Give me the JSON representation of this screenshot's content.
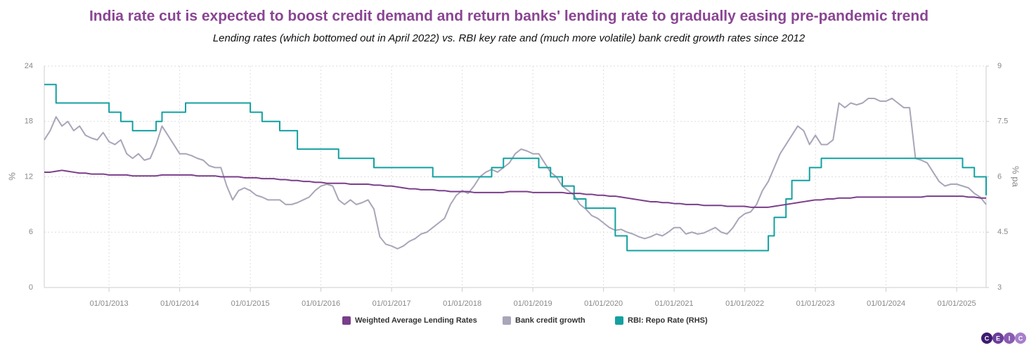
{
  "chart_data": {
    "type": "line",
    "title": "India rate cut is expected to boost credit demand and return banks' lending rate to gradually easing pre-pandemic trend",
    "subtitle": "Lending rates (which bottomed out in April 2022) vs. RBI key rate and (much more volatile) bank credit growth rates since 2012",
    "ylabel": "%",
    "y2label": "% pa",
    "logo": [
      "C",
      "E",
      "I",
      "C"
    ],
    "grid": true,
    "legend": "bottom",
    "xlim": [
      "2012-02",
      "2025-06"
    ],
    "xticks": [
      {
        "value": "2013-01",
        "label": "01/01/2013"
      },
      {
        "value": "2014-01",
        "label": "01/01/2014"
      },
      {
        "value": "2015-01",
        "label": "01/01/2015"
      },
      {
        "value": "2016-01",
        "label": "01/01/2016"
      },
      {
        "value": "2017-01",
        "label": "01/01/2017"
      },
      {
        "value": "2018-01",
        "label": "01/01/2018"
      },
      {
        "value": "2019-01",
        "label": "01/01/2019"
      },
      {
        "value": "2020-01",
        "label": "01/01/2020"
      },
      {
        "value": "2021-01",
        "label": "01/01/2021"
      },
      {
        "value": "2022-01",
        "label": "01/01/2022"
      },
      {
        "value": "2023-01",
        "label": "01/01/2023"
      },
      {
        "value": "2024-01",
        "label": "01/01/2024"
      },
      {
        "value": "2025-01",
        "label": "01/01/2025"
      }
    ],
    "ylim": [
      0,
      24
    ],
    "yticks": [
      0,
      6,
      12,
      18,
      24
    ],
    "y2lim": [
      3,
      9
    ],
    "y2ticks": [
      3,
      4.5,
      6,
      7.5,
      9
    ],
    "x": [
      "2012-02",
      "2012-03",
      "2012-04",
      "2012-05",
      "2012-06",
      "2012-07",
      "2012-08",
      "2012-09",
      "2012-10",
      "2012-11",
      "2012-12",
      "2013-01",
      "2013-02",
      "2013-03",
      "2013-04",
      "2013-05",
      "2013-06",
      "2013-07",
      "2013-08",
      "2013-09",
      "2013-10",
      "2013-11",
      "2013-12",
      "2014-01",
      "2014-02",
      "2014-03",
      "2014-04",
      "2014-05",
      "2014-06",
      "2014-07",
      "2014-08",
      "2014-09",
      "2014-10",
      "2014-11",
      "2014-12",
      "2015-01",
      "2015-02",
      "2015-03",
      "2015-04",
      "2015-05",
      "2015-06",
      "2015-07",
      "2015-08",
      "2015-09",
      "2015-10",
      "2015-11",
      "2015-12",
      "2016-01",
      "2016-02",
      "2016-03",
      "2016-04",
      "2016-05",
      "2016-06",
      "2016-07",
      "2016-08",
      "2016-09",
      "2016-10",
      "2016-11",
      "2016-12",
      "2017-01",
      "2017-02",
      "2017-03",
      "2017-04",
      "2017-05",
      "2017-06",
      "2017-07",
      "2017-08",
      "2017-09",
      "2017-10",
      "2017-11",
      "2017-12",
      "2018-01",
      "2018-02",
      "2018-03",
      "2018-04",
      "2018-05",
      "2018-06",
      "2018-07",
      "2018-08",
      "2018-09",
      "2018-10",
      "2018-11",
      "2018-12",
      "2019-01",
      "2019-02",
      "2019-03",
      "2019-04",
      "2019-05",
      "2019-06",
      "2019-07",
      "2019-08",
      "2019-09",
      "2019-10",
      "2019-11",
      "2019-12",
      "2020-01",
      "2020-02",
      "2020-03",
      "2020-04",
      "2020-05",
      "2020-06",
      "2020-07",
      "2020-08",
      "2020-09",
      "2020-10",
      "2020-11",
      "2020-12",
      "2021-01",
      "2021-02",
      "2021-03",
      "2021-04",
      "2021-05",
      "2021-06",
      "2021-07",
      "2021-08",
      "2021-09",
      "2021-10",
      "2021-11",
      "2021-12",
      "2022-01",
      "2022-02",
      "2022-03",
      "2022-04",
      "2022-05",
      "2022-06",
      "2022-07",
      "2022-08",
      "2022-09",
      "2022-10",
      "2022-11",
      "2022-12",
      "2023-01",
      "2023-02",
      "2023-03",
      "2023-04",
      "2023-05",
      "2023-06",
      "2023-07",
      "2023-08",
      "2023-09",
      "2023-10",
      "2023-11",
      "2023-12",
      "2024-01",
      "2024-02",
      "2024-03",
      "2024-04",
      "2024-05",
      "2024-06",
      "2024-07",
      "2024-08",
      "2024-09",
      "2024-10",
      "2024-11",
      "2024-12",
      "2025-01",
      "2025-02",
      "2025-03",
      "2025-04",
      "2025-05",
      "2025-06"
    ],
    "series": [
      {
        "name": "Weighted Average Lending Rates",
        "color": "#7a3e8a",
        "values": [
          12.5,
          12.5,
          12.6,
          12.7,
          12.6,
          12.5,
          12.4,
          12.4,
          12.3,
          12.3,
          12.3,
          12.2,
          12.2,
          12.2,
          12.2,
          12.1,
          12.1,
          12.1,
          12.1,
          12.1,
          12.2,
          12.2,
          12.2,
          12.2,
          12.2,
          12.2,
          12.1,
          12.1,
          12.1,
          12.1,
          12.0,
          12.0,
          12.0,
          12.0,
          11.9,
          11.9,
          11.9,
          11.8,
          11.8,
          11.8,
          11.7,
          11.7,
          11.6,
          11.6,
          11.5,
          11.5,
          11.4,
          11.4,
          11.3,
          11.3,
          11.3,
          11.3,
          11.2,
          11.2,
          11.2,
          11.2,
          11.1,
          11.1,
          11.0,
          11.0,
          10.9,
          10.8,
          10.7,
          10.7,
          10.6,
          10.6,
          10.6,
          10.5,
          10.5,
          10.4,
          10.4,
          10.4,
          10.4,
          10.3,
          10.3,
          10.3,
          10.3,
          10.3,
          10.3,
          10.4,
          10.4,
          10.4,
          10.4,
          10.3,
          10.3,
          10.3,
          10.3,
          10.3,
          10.3,
          10.2,
          10.2,
          10.2,
          10.1,
          10.1,
          10.0,
          10.0,
          9.9,
          9.9,
          9.8,
          9.7,
          9.6,
          9.5,
          9.4,
          9.3,
          9.3,
          9.2,
          9.2,
          9.1,
          9.1,
          9.0,
          9.0,
          9.0,
          8.9,
          8.9,
          8.9,
          8.9,
          8.8,
          8.8,
          8.8,
          8.8,
          8.7,
          8.7,
          8.7,
          8.7,
          8.8,
          8.9,
          9.0,
          9.1,
          9.2,
          9.3,
          9.4,
          9.5,
          9.5,
          9.6,
          9.6,
          9.7,
          9.7,
          9.7,
          9.8,
          9.8,
          9.8,
          9.8,
          9.8,
          9.8,
          9.8,
          9.8,
          9.8,
          9.8,
          9.8,
          9.8,
          9.9,
          9.9,
          9.9,
          9.9,
          9.9,
          9.9,
          9.9,
          9.8,
          9.8,
          9.7,
          9.7
        ]
      },
      {
        "name": "Bank credit growth",
        "color": "#a8a6b8",
        "values": [
          16,
          17,
          18.5,
          17.5,
          18,
          17,
          17.5,
          16.5,
          16.2,
          16,
          16.8,
          15.8,
          15.5,
          16,
          14.5,
          14,
          14.5,
          13.8,
          14,
          15.5,
          17.5,
          16.5,
          15.5,
          14.5,
          14.5,
          14.3,
          14,
          13.8,
          13.2,
          13,
          13,
          11,
          9.5,
          10.5,
          10.8,
          10.5,
          10,
          9.8,
          9.5,
          9.5,
          9.5,
          9,
          9,
          9.2,
          9.5,
          9.8,
          10.5,
          11,
          11.2,
          11,
          9.5,
          9,
          9.5,
          9,
          9.2,
          9.5,
          8.5,
          5.5,
          4.7,
          4.5,
          4.2,
          4.5,
          5,
          5.3,
          5.8,
          6,
          6.5,
          7,
          7.5,
          9,
          10,
          10.5,
          10.2,
          11,
          12,
          12.5,
          12.8,
          12.5,
          13,
          13.5,
          14.5,
          15,
          14.8,
          14.5,
          14.5,
          13.5,
          12.5,
          12,
          11,
          10.5,
          10,
          9,
          8.5,
          7.8,
          7.5,
          7,
          6.5,
          6.2,
          6.3,
          6,
          5.8,
          5.5,
          5.3,
          5.5,
          5.8,
          5.6,
          6,
          6.5,
          6.5,
          5.8,
          6,
          5.8,
          5.9,
          6.2,
          6.5,
          6,
          5.8,
          6.5,
          7.5,
          8,
          8.2,
          9,
          10.5,
          11.5,
          13,
          14.5,
          15.5,
          16.5,
          17.5,
          17,
          15.5,
          16.5,
          15.5,
          15.5,
          16,
          20,
          19.5,
          20,
          19.8,
          20,
          20.5,
          20.5,
          20.2,
          20.2,
          20.5,
          20,
          19.5,
          19.5,
          14,
          13.8,
          13.5,
          12.5,
          11.5,
          11,
          11.2,
          11.2,
          11,
          10.8,
          10.2,
          9.8,
          9
        ]
      },
      {
        "name": "RBI: Repo Rate (RHS)",
        "color": "#14a0a0",
        "axis": "y2",
        "step": "post",
        "values": [
          8.5,
          8.5,
          8,
          8,
          8,
          8,
          8,
          8,
          8,
          8,
          8,
          7.75,
          7.75,
          7.5,
          7.5,
          7.25,
          7.25,
          7.25,
          7.25,
          7.5,
          7.75,
          7.75,
          7.75,
          7.75,
          8,
          8,
          8,
          8,
          8,
          8,
          8,
          8,
          8,
          8,
          8,
          7.75,
          7.75,
          7.5,
          7.5,
          7.5,
          7.25,
          7.25,
          7.25,
          6.75,
          6.75,
          6.75,
          6.75,
          6.75,
          6.75,
          6.75,
          6.5,
          6.5,
          6.5,
          6.5,
          6.5,
          6.5,
          6.25,
          6.25,
          6.25,
          6.25,
          6.25,
          6.25,
          6.25,
          6.25,
          6.25,
          6.25,
          6,
          6,
          6,
          6,
          6,
          6,
          6,
          6,
          6,
          6,
          6.25,
          6.25,
          6.5,
          6.5,
          6.5,
          6.5,
          6.5,
          6.5,
          6.25,
          6.25,
          6,
          6,
          5.75,
          5.75,
          5.4,
          5.4,
          5.15,
          5.15,
          5.15,
          5.15,
          5.15,
          4.4,
          4.4,
          4,
          4,
          4,
          4,
          4,
          4,
          4,
          4,
          4,
          4,
          4,
          4,
          4,
          4,
          4,
          4,
          4,
          4,
          4,
          4,
          4,
          4,
          4,
          4,
          4.4,
          4.9,
          4.9,
          5.4,
          5.9,
          5.9,
          5.9,
          6.25,
          6.25,
          6.5,
          6.5,
          6.5,
          6.5,
          6.5,
          6.5,
          6.5,
          6.5,
          6.5,
          6.5,
          6.5,
          6.5,
          6.5,
          6.5,
          6.5,
          6.5,
          6.5,
          6.5,
          6.5,
          6.5,
          6.5,
          6.5,
          6.5,
          6.5,
          6.25,
          6.25,
          6,
          6,
          5.5
        ]
      }
    ]
  }
}
